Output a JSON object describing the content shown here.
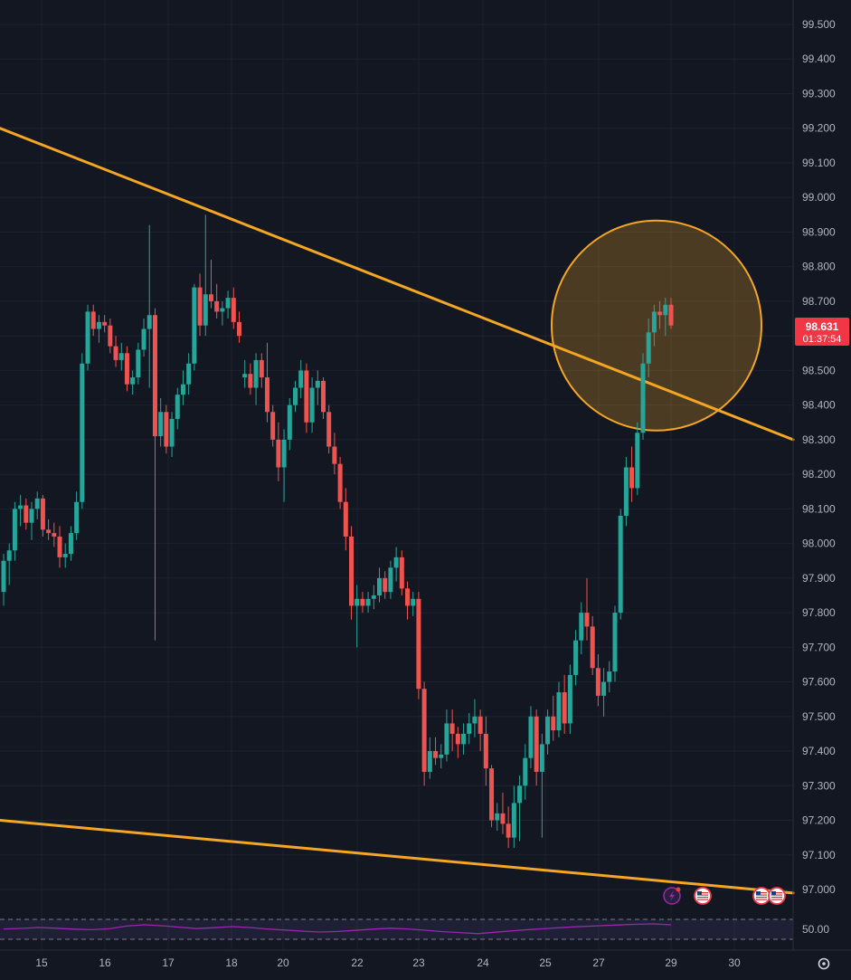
{
  "chart_data": {
    "type": "candlestick",
    "title": "",
    "y_ticks": [
      "99.500",
      "99.400",
      "99.300",
      "99.200",
      "99.100",
      "99.000",
      "98.900",
      "98.800",
      "98.700",
      "98.600",
      "98.500",
      "98.400",
      "98.300",
      "98.200",
      "98.100",
      "98.000",
      "97.900",
      "97.800",
      "97.700",
      "97.600",
      "97.500",
      "97.400",
      "97.300",
      "97.200",
      "97.100",
      "97.000"
    ],
    "ylim": [
      96.94,
      99.56
    ],
    "x_ticks": [
      "15",
      "16",
      "17",
      "18",
      "20",
      "22",
      "23",
      "24",
      "25",
      "27",
      "29",
      "30"
    ],
    "grid": true,
    "last_price": {
      "value": "98.631",
      "countdown": "01:37:54",
      "color": "#f23645"
    },
    "trendlines": [
      {
        "name": "upper-resistance",
        "from": [
          "left-edge",
          99.2
        ],
        "to": [
          "right-edge",
          98.3
        ],
        "color": "#f5a623"
      },
      {
        "name": "lower-support",
        "from": [
          "left-edge",
          97.2
        ],
        "to": [
          "right-edge",
          96.99
        ],
        "color": "#f5a623"
      }
    ],
    "highlight_circle": {
      "center_price": 98.63,
      "color": "#f5a623"
    },
    "colors": {
      "up": "#26a69a",
      "down": "#ef5350",
      "background": "#131722",
      "grid": "#1e2230"
    },
    "candles": [
      [
        97.86,
        97.97,
        97.82,
        97.95
      ],
      [
        97.95,
        98.0,
        97.88,
        97.98
      ],
      [
        97.98,
        98.12,
        97.95,
        98.1
      ],
      [
        98.1,
        98.14,
        98.05,
        98.11
      ],
      [
        98.11,
        98.13,
        98.04,
        98.06
      ],
      [
        98.06,
        98.12,
        98.01,
        98.1
      ],
      [
        98.1,
        98.15,
        98.07,
        98.13
      ],
      [
        98.13,
        98.14,
        98.02,
        98.04
      ],
      [
        98.04,
        98.07,
        98.01,
        98.03
      ],
      [
        98.03,
        98.06,
        97.99,
        98.02
      ],
      [
        98.02,
        98.05,
        97.93,
        97.96
      ],
      [
        97.96,
        98.0,
        97.93,
        97.97
      ],
      [
        97.97,
        98.05,
        97.95,
        98.03
      ],
      [
        98.03,
        98.15,
        98.01,
        98.12
      ],
      [
        98.12,
        98.55,
        98.1,
        98.52
      ],
      [
        98.52,
        98.69,
        98.5,
        98.67
      ],
      [
        98.67,
        98.69,
        98.6,
        98.62
      ],
      [
        98.62,
        98.66,
        98.58,
        98.64
      ],
      [
        98.64,
        98.66,
        98.61,
        98.63
      ],
      [
        98.63,
        98.65,
        98.55,
        98.57
      ],
      [
        98.57,
        98.6,
        98.51,
        98.53
      ],
      [
        98.53,
        98.58,
        98.5,
        98.55
      ],
      [
        98.55,
        98.57,
        98.44,
        98.46
      ],
      [
        98.46,
        98.5,
        98.43,
        98.48
      ],
      [
        98.48,
        98.58,
        98.46,
        98.56
      ],
      [
        98.56,
        98.65,
        98.54,
        98.62
      ],
      [
        98.62,
        98.92,
        98.45,
        98.66
      ],
      [
        98.66,
        98.68,
        97.72,
        98.31
      ],
      [
        98.31,
        98.42,
        98.28,
        98.38
      ],
      [
        98.38,
        98.4,
        98.26,
        98.28
      ],
      [
        98.28,
        98.38,
        98.25,
        98.36
      ],
      [
        98.36,
        98.45,
        98.33,
        98.43
      ],
      [
        98.43,
        98.5,
        98.4,
        98.46
      ],
      [
        98.46,
        98.55,
        98.43,
        98.52
      ],
      [
        98.52,
        98.75,
        98.5,
        98.74
      ],
      [
        98.74,
        98.78,
        98.6,
        98.63
      ],
      [
        98.63,
        98.95,
        98.6,
        98.72
      ],
      [
        98.72,
        98.82,
        98.68,
        98.7
      ],
      [
        98.7,
        98.75,
        98.65,
        98.67
      ],
      [
        98.67,
        98.7,
        98.63,
        98.68
      ],
      [
        98.68,
        98.73,
        98.65,
        98.71
      ],
      [
        98.71,
        98.74,
        98.62,
        98.64
      ],
      [
        98.64,
        98.67,
        98.58,
        98.6
      ],
      [
        98.48,
        98.53,
        98.45,
        98.49
      ],
      [
        98.49,
        98.52,
        98.43,
        98.45
      ],
      [
        98.45,
        98.55,
        98.4,
        98.53
      ],
      [
        98.53,
        98.55,
        98.45,
        98.48
      ],
      [
        98.48,
        98.58,
        98.35,
        98.38
      ],
      [
        98.38,
        98.4,
        98.28,
        98.3
      ],
      [
        98.3,
        98.35,
        98.18,
        98.22
      ],
      [
        98.22,
        98.33,
        98.12,
        98.3
      ],
      [
        98.3,
        98.42,
        98.27,
        98.4
      ],
      [
        98.4,
        98.47,
        98.38,
        98.45
      ],
      [
        98.45,
        98.53,
        98.42,
        98.5
      ],
      [
        98.5,
        98.52,
        98.32,
        98.35
      ],
      [
        98.35,
        98.48,
        98.32,
        98.45
      ],
      [
        98.45,
        98.5,
        98.4,
        98.47
      ],
      [
        98.47,
        98.48,
        98.36,
        98.38
      ],
      [
        98.38,
        98.4,
        98.26,
        98.28
      ],
      [
        98.28,
        98.32,
        98.2,
        98.23
      ],
      [
        98.23,
        98.25,
        98.1,
        98.12
      ],
      [
        98.12,
        98.16,
        97.98,
        98.02
      ],
      [
        98.02,
        98.05,
        97.78,
        97.82
      ],
      [
        97.82,
        97.88,
        97.7,
        97.84
      ],
      [
        97.84,
        97.86,
        97.8,
        97.82
      ],
      [
        97.82,
        97.86,
        97.8,
        97.84
      ],
      [
        97.84,
        97.88,
        97.81,
        97.85
      ],
      [
        97.85,
        97.93,
        97.83,
        97.9
      ],
      [
        97.9,
        97.92,
        97.84,
        97.86
      ],
      [
        97.86,
        97.95,
        97.84,
        97.93
      ],
      [
        97.93,
        97.99,
        97.89,
        97.96
      ],
      [
        97.96,
        97.98,
        97.85,
        97.87
      ],
      [
        97.87,
        97.89,
        97.78,
        97.82
      ],
      [
        97.82,
        97.86,
        97.79,
        97.84
      ],
      [
        97.84,
        97.86,
        97.55,
        97.58
      ],
      [
        97.58,
        97.6,
        97.3,
        97.34
      ],
      [
        97.34,
        97.44,
        97.32,
        97.4
      ],
      [
        97.4,
        97.44,
        97.36,
        97.38
      ],
      [
        97.38,
        97.42,
        97.35,
        97.39
      ],
      [
        97.39,
        97.52,
        97.37,
        97.48
      ],
      [
        97.48,
        97.52,
        97.4,
        97.45
      ],
      [
        97.45,
        97.47,
        97.38,
        97.42
      ],
      [
        97.42,
        97.48,
        97.39,
        97.45
      ],
      [
        97.45,
        97.51,
        97.42,
        97.48
      ],
      [
        97.48,
        97.55,
        97.44,
        97.5
      ],
      [
        97.5,
        97.52,
        97.4,
        97.45
      ],
      [
        97.45,
        97.5,
        97.3,
        97.35
      ],
      [
        97.35,
        97.36,
        97.18,
        97.2
      ],
      [
        97.2,
        97.25,
        97.17,
        97.22
      ],
      [
        97.22,
        97.28,
        97.16,
        97.19
      ],
      [
        97.19,
        97.24,
        97.12,
        97.15
      ],
      [
        97.15,
        97.3,
        97.12,
        97.25
      ],
      [
        97.25,
        97.33,
        97.14,
        97.3
      ],
      [
        97.3,
        97.42,
        97.26,
        97.38
      ],
      [
        97.38,
        97.53,
        97.35,
        97.5
      ],
      [
        97.5,
        97.52,
        97.3,
        97.34
      ],
      [
        97.34,
        97.45,
        97.15,
        97.42
      ],
      [
        97.42,
        97.52,
        97.39,
        97.5
      ],
      [
        97.5,
        97.56,
        97.43,
        97.46
      ],
      [
        97.46,
        97.6,
        97.44,
        97.57
      ],
      [
        97.57,
        97.62,
        97.45,
        97.48
      ],
      [
        97.48,
        97.65,
        97.45,
        97.62
      ],
      [
        97.62,
        97.75,
        97.59,
        97.72
      ],
      [
        97.72,
        97.83,
        97.68,
        97.8
      ],
      [
        97.8,
        97.9,
        97.72,
        97.76
      ],
      [
        97.76,
        97.79,
        97.62,
        97.64
      ],
      [
        97.64,
        97.68,
        97.53,
        97.56
      ],
      [
        97.56,
        97.64,
        97.5,
        97.6
      ],
      [
        97.6,
        97.66,
        97.57,
        97.63
      ],
      [
        97.63,
        97.82,
        97.6,
        97.8
      ],
      [
        97.8,
        98.1,
        97.78,
        98.08
      ],
      [
        98.08,
        98.25,
        98.05,
        98.22
      ],
      [
        98.22,
        98.28,
        98.12,
        98.16
      ],
      [
        98.16,
        98.35,
        98.14,
        98.32
      ],
      [
        98.32,
        98.55,
        98.3,
        98.52
      ],
      [
        98.52,
        98.65,
        98.48,
        98.61
      ],
      [
        98.61,
        98.69,
        98.57,
        98.67
      ],
      [
        98.67,
        98.7,
        98.62,
        98.66
      ],
      [
        98.66,
        98.71,
        98.6,
        98.69
      ],
      [
        98.69,
        98.71,
        98.62,
        98.63
      ]
    ],
    "rsi": {
      "label": "50.00",
      "color": "#9c27b0",
      "values": [
        50.2,
        50.5,
        51.0,
        50.6,
        50.1,
        49.8,
        50.3,
        51.8,
        52.5,
        52.0,
        51.2,
        50.4,
        50.9,
        51.5,
        51.0,
        50.2,
        49.6,
        49.0,
        48.5,
        48.8,
        49.4,
        50.1,
        50.6,
        50.2,
        49.5,
        48.7,
        48.2,
        47.6,
        48.4,
        49.2,
        49.9,
        50.5,
        51.1,
        51.6,
        52.0,
        52.4,
        52.8,
        53.0,
        52.5
      ]
    },
    "markers": [
      {
        "name": "lightning-event",
        "color": "#9c27b0"
      },
      {
        "name": "us-flag-event"
      },
      {
        "name": "us-flag-event"
      },
      {
        "name": "us-flag-event"
      }
    ]
  }
}
